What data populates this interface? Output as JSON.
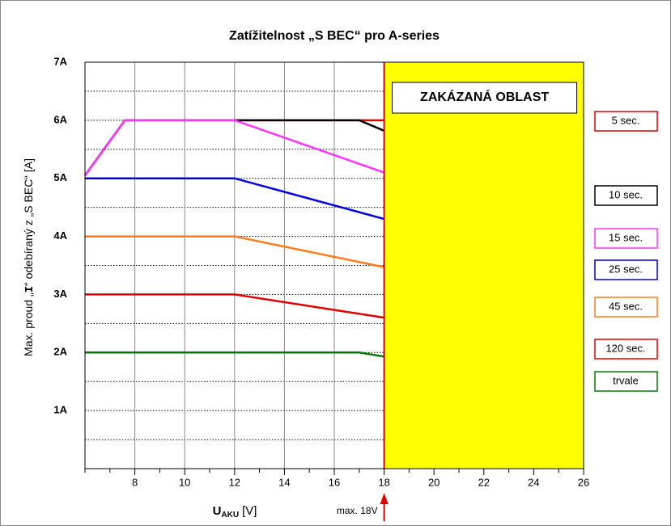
{
  "chart_data": {
    "type": "line",
    "title": "Zatížitelnost „S BEC“ pro A-series",
    "x_label": {
      "main": "U",
      "sub": "AKU",
      "unit": "[V]"
    },
    "y_label": [
      "Max. proud „",
      "I",
      "“ odebíraný z „S BEC“ [A]"
    ],
    "xlim": [
      6,
      26
    ],
    "xticks": [
      8,
      10,
      12,
      14,
      16,
      18,
      20,
      22,
      24,
      26
    ],
    "xminor": [
      6,
      7,
      9,
      11,
      13,
      15,
      17,
      19,
      21,
      23,
      25
    ],
    "ylim": [
      0,
      7
    ],
    "yticks": [
      {
        "value": 1,
        "label": "1A"
      },
      {
        "value": 2,
        "label": "2A"
      },
      {
        "value": 3,
        "label": "3A"
      },
      {
        "value": 4,
        "label": "4A"
      },
      {
        "value": 5,
        "label": "5A"
      },
      {
        "value": 6,
        "label": "6A"
      },
      {
        "value": 7,
        "label": "7A"
      }
    ],
    "yminor": [
      0.5,
      1.5,
      2.5,
      3.5,
      4.5,
      5.5,
      6.5
    ],
    "grid": true,
    "forbidden": {
      "xlim": [
        18,
        26
      ],
      "label": "ZAKÁZANÁ OBLAST",
      "color": "#ffff00",
      "edge_color": "#e00000"
    },
    "max_note": "max. 18V",
    "series": [
      {
        "name": "5 sec.",
        "color": "#e00000",
        "x": [
          6,
          7.6,
          12,
          17,
          18
        ],
        "values": [
          5.05,
          6,
          6,
          6,
          6
        ]
      },
      {
        "name": "10 sec.",
        "color": "#000000",
        "x": [
          6,
          7.6,
          12,
          17,
          18
        ],
        "values": [
          5.05,
          6,
          6,
          6,
          5.82
        ]
      },
      {
        "name": "15 sec.",
        "color": "#ff33ff",
        "x": [
          6,
          7.6,
          12,
          18
        ],
        "values": [
          5.05,
          6,
          6,
          5.1
        ]
      },
      {
        "name": "25 sec.",
        "color": "#0000e0",
        "x": [
          6,
          12,
          18
        ],
        "values": [
          5,
          5,
          4.3
        ]
      },
      {
        "name": "45 sec.",
        "color": "#ff7a1a",
        "x": [
          6,
          12,
          18
        ],
        "values": [
          4,
          4,
          3.47
        ]
      },
      {
        "name": "120 sec.",
        "color": "#e00000",
        "x": [
          6,
          12,
          18
        ],
        "values": [
          3,
          3,
          2.6
        ]
      },
      {
        "name": "trvale",
        "color": "#007a00",
        "x": [
          6,
          17,
          18
        ],
        "values": [
          2,
          2,
          1.93
        ]
      }
    ]
  }
}
